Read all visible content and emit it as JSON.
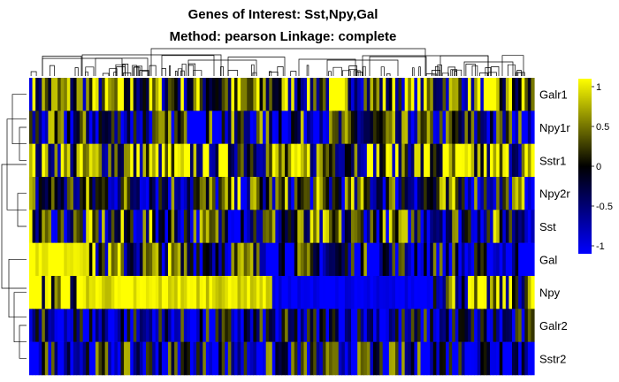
{
  "chart_data": {
    "type": "heatmap",
    "title": "Genes of Interest: Sst,Npy,Gal",
    "subtitle": "Method: pearson  Linkage: complete",
    "rows": [
      "Galr1",
      "Npy1r",
      "Sstr1",
      "Npy2r",
      "Sst",
      "Gal",
      "Npy",
      "Galr2",
      "Sstr2"
    ],
    "color_scale": {
      "min": -1,
      "max": 1,
      "stops": [
        "#0000ff",
        "#000000",
        "#ffff00"
      ],
      "ticks": [
        "1",
        "0.5",
        "0",
        "-0.5",
        "-1"
      ]
    },
    "column_count": 160,
    "row_bands": [
      [
        {
          "from": 0,
          "to": 1,
          "v": 0.2
        }
      ],
      [
        {
          "from": 0,
          "to": 1,
          "v": -0.3
        }
      ],
      [
        {
          "from": 0,
          "to": 1,
          "v": 0.3
        }
      ],
      [
        {
          "from": 0,
          "to": 1,
          "v": -0.1
        }
      ],
      [
        {
          "from": 0,
          "to": 1,
          "v": -0.1
        }
      ],
      [
        {
          "from": 0,
          "to": 0.12,
          "v": 1
        },
        {
          "from": 0.12,
          "to": 0.45,
          "v": 0
        },
        {
          "from": 0.45,
          "to": 0.85,
          "v": -0.4
        },
        {
          "from": 0.85,
          "to": 1,
          "v": -0.8
        }
      ],
      [
        {
          "from": 0,
          "to": 0.11,
          "v": 0.7
        },
        {
          "from": 0.11,
          "to": 0.48,
          "v": 0.9
        },
        {
          "from": 0.48,
          "to": 0.8,
          "v": -1
        },
        {
          "from": 0.8,
          "to": 1,
          "v": 0.2
        }
      ],
      [
        {
          "from": 0,
          "to": 1,
          "v": -0.6
        }
      ],
      [
        {
          "from": 0,
          "to": 1,
          "v": -0.4
        }
      ]
    ],
    "row_dendrogram": "left",
    "column_dendrogram": "top",
    "legend": "right"
  }
}
